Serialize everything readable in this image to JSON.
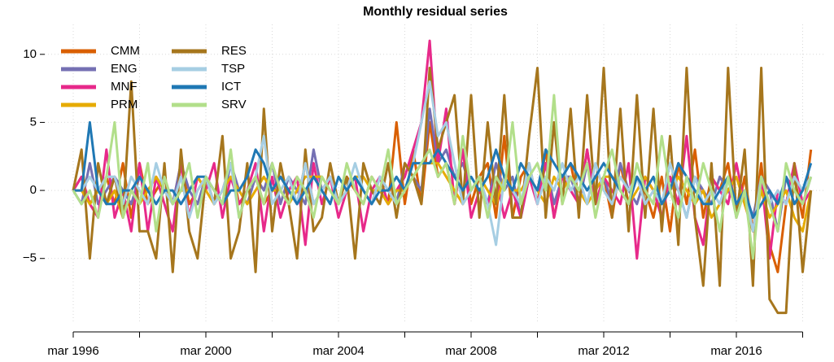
{
  "chart_data": {
    "type": "line",
    "title": "Monthly residual series",
    "x": [
      "1996-03",
      "1996-06",
      "1996-09",
      "1996-12",
      "1997-03",
      "1997-06",
      "1997-09",
      "1997-12",
      "1998-03",
      "1998-06",
      "1998-09",
      "1998-12",
      "1999-03",
      "1999-06",
      "1999-09",
      "1999-12",
      "2000-03",
      "2000-06",
      "2000-09",
      "2000-12",
      "2001-03",
      "2001-06",
      "2001-09",
      "2001-12",
      "2002-03",
      "2002-06",
      "2002-09",
      "2002-12",
      "2003-03",
      "2003-06",
      "2003-09",
      "2003-12",
      "2004-03",
      "2004-06",
      "2004-09",
      "2004-12",
      "2005-03",
      "2005-06",
      "2005-09",
      "2005-12",
      "2006-03",
      "2006-06",
      "2006-09",
      "2006-12",
      "2007-03",
      "2007-06",
      "2007-09",
      "2007-12",
      "2008-03",
      "2008-06",
      "2008-09",
      "2008-12",
      "2009-03",
      "2009-06",
      "2009-09",
      "2009-12",
      "2010-03",
      "2010-06",
      "2010-09",
      "2010-12",
      "2011-03",
      "2011-06",
      "2011-09",
      "2011-12",
      "2012-03",
      "2012-06",
      "2012-09",
      "2012-12",
      "2013-03",
      "2013-06",
      "2013-09",
      "2013-12",
      "2014-03",
      "2014-06",
      "2014-09",
      "2014-12",
      "2015-03",
      "2015-06",
      "2015-09",
      "2015-12",
      "2016-03",
      "2016-06",
      "2016-09",
      "2016-12",
      "2017-03",
      "2017-06",
      "2017-09",
      "2017-12",
      "2018-03",
      "2018-06"
    ],
    "series": [
      {
        "name": "CMM",
        "color": "#d95f02",
        "values": [
          0,
          1,
          -1,
          0,
          1,
          -1,
          2,
          -2,
          2,
          -1,
          0,
          1,
          -1,
          2,
          -1,
          0,
          1,
          -1,
          0,
          2,
          -1,
          0,
          1,
          -1,
          0,
          1,
          0,
          -1,
          2,
          -1,
          0,
          1,
          -1,
          1,
          0,
          -1,
          1,
          0,
          -1,
          5,
          -1,
          3,
          -1,
          5,
          1,
          2,
          -1,
          3,
          -1,
          1,
          2,
          -2,
          4,
          -2,
          1,
          2,
          -1,
          3,
          -2,
          1,
          2,
          -1,
          3,
          -1,
          1,
          -2,
          2,
          -1,
          1,
          0,
          -2,
          1,
          -3,
          2,
          -1,
          3,
          -2,
          1,
          0,
          2,
          -2,
          1,
          -3,
          2,
          -4,
          -6,
          -1,
          1,
          -2,
          3
        ]
      },
      {
        "name": "ENG",
        "color": "#7570b3",
        "values": [
          0,
          -1,
          2,
          -1,
          0,
          1,
          0,
          -1,
          1,
          0,
          1,
          0,
          -1,
          2,
          0,
          -1,
          1,
          0,
          -1,
          2,
          0,
          -1,
          1,
          0,
          2,
          -1,
          1,
          0,
          -1,
          3,
          0,
          1,
          -1,
          0,
          1,
          0,
          -1,
          1,
          0,
          -1,
          2,
          1,
          0,
          6,
          2,
          3,
          1,
          2,
          0,
          1,
          -1,
          2,
          0,
          1,
          -2,
          1,
          0,
          2,
          -1,
          1,
          1,
          -1,
          2,
          0,
          1,
          -1,
          2,
          0,
          -1,
          1,
          0,
          -1,
          1,
          0,
          -2,
          1,
          0,
          -1,
          1,
          0,
          -1,
          0,
          -2,
          1,
          0,
          -3,
          1,
          0,
          -1,
          1
        ]
      },
      {
        "name": "MNF",
        "color": "#e7298a",
        "values": [
          0,
          1,
          -1,
          -2,
          3,
          -2,
          0,
          -3,
          2,
          -3,
          1,
          -1,
          -3,
          2,
          -2,
          1,
          0,
          2,
          -2,
          1,
          -1,
          0,
          2,
          -3,
          1,
          -2,
          0,
          1,
          -4,
          2,
          -1,
          1,
          -2,
          0,
          1,
          -3,
          0,
          1,
          -1,
          0,
          1,
          3,
          5,
          11,
          2,
          6,
          -1,
          3,
          -2,
          0,
          -1,
          1,
          -2,
          0,
          -2,
          1,
          -1,
          2,
          -2,
          1,
          0,
          -1,
          3,
          -1,
          1,
          0,
          -1,
          2,
          -5,
          1,
          0,
          -2,
          1,
          -1,
          4,
          -2,
          -4,
          1,
          0,
          -1,
          2,
          -1,
          -3,
          1,
          -5,
          0,
          -1,
          2,
          -1,
          0
        ]
      },
      {
        "name": "PRM",
        "color": "#e6ab02",
        "values": [
          0,
          0,
          -1,
          0,
          -1,
          0,
          -2,
          0,
          -1,
          0,
          1,
          0,
          -1,
          0,
          0,
          1,
          0,
          -1,
          0,
          1,
          0,
          -1,
          0,
          1,
          0,
          0,
          -1,
          0,
          1,
          1,
          1,
          0,
          -1,
          0,
          1,
          1,
          0,
          0,
          -1,
          0,
          0,
          1,
          2,
          2,
          2,
          1,
          0,
          -1,
          0,
          1,
          0,
          -1,
          1,
          0,
          0,
          1,
          0,
          -1,
          1,
          0,
          1,
          0,
          -1,
          0,
          1,
          1,
          0,
          -1,
          0,
          1,
          0,
          -1,
          0,
          1,
          0,
          -1,
          0,
          -2,
          -1,
          0,
          1,
          -1,
          -3,
          0,
          -2,
          -1,
          0,
          -2,
          -3,
          0
        ]
      },
      {
        "name": "RES",
        "color": "#a6761d",
        "values": [
          0,
          3,
          -5,
          2,
          -1,
          1,
          -2,
          8,
          -3,
          -3,
          -5,
          2,
          -6,
          3,
          -3,
          -5,
          1,
          -1,
          4,
          -5,
          -3,
          2,
          -6,
          6,
          -3,
          2,
          -1,
          -5,
          3,
          -3,
          -2,
          2,
          -1,
          1,
          -5,
          2,
          0,
          -1,
          2,
          -2,
          2,
          1,
          -1,
          9,
          3,
          5,
          7,
          -1,
          7,
          -2,
          5,
          -1,
          7,
          -2,
          -2,
          4,
          9,
          -2,
          5,
          -1,
          6,
          -2,
          7,
          -1,
          9,
          -2,
          6,
          -3,
          7,
          -2,
          6,
          -3,
          4,
          -4,
          9,
          -2,
          -7,
          2,
          -7,
          9,
          -2,
          3,
          -7,
          9,
          -8,
          -9,
          -9,
          2,
          -6,
          0
        ]
      },
      {
        "name": "TSP",
        "color": "#a6cee3",
        "values": [
          0,
          0,
          1,
          0,
          1,
          1,
          -1,
          1,
          0,
          -1,
          2,
          0,
          -1,
          1,
          -2,
          0,
          1,
          -1,
          0,
          2,
          -2,
          0,
          1,
          4,
          -1,
          0,
          1,
          -1,
          2,
          -1,
          0,
          1,
          -1,
          0,
          2,
          0,
          -1,
          1,
          0,
          -1,
          0,
          2,
          5,
          8,
          4,
          5,
          2,
          -1,
          0,
          1,
          -1,
          -4,
          1,
          0,
          -1,
          2,
          -1,
          1,
          0,
          2,
          0,
          1,
          -1,
          2,
          0,
          -1,
          1,
          0,
          1,
          -1,
          0,
          -1,
          2,
          0,
          -2,
          1,
          -1,
          0,
          -1,
          1,
          -2,
          0,
          -3,
          1,
          -1,
          0,
          -1,
          1,
          0,
          1
        ]
      },
      {
        "name": "ICT",
        "color": "#1f78b4",
        "values": [
          0,
          0,
          5,
          0,
          -1,
          -1,
          0,
          0,
          1,
          0,
          -1,
          0,
          0,
          -1,
          0,
          1,
          1,
          0,
          -1,
          0,
          0,
          1,
          3,
          2,
          0,
          1,
          0,
          -1,
          0,
          1,
          0,
          -1,
          1,
          0,
          1,
          0,
          -1,
          0,
          0,
          1,
          0,
          2,
          2,
          2,
          3,
          2,
          1,
          0,
          1,
          0,
          1,
          3,
          1,
          0,
          2,
          1,
          0,
          3,
          2,
          1,
          2,
          1,
          0,
          1,
          2,
          1,
          0,
          -1,
          1,
          0,
          1,
          -1,
          0,
          2,
          1,
          0,
          -1,
          -1,
          0,
          1,
          -1,
          0,
          -2,
          -1,
          0,
          -1,
          1,
          -1,
          0,
          2
        ]
      },
      {
        "name": "SRV",
        "color": "#b2df8a",
        "values": [
          0,
          -1,
          0,
          -2,
          1,
          5,
          -2,
          0,
          -1,
          2,
          -3,
          1,
          -1,
          0,
          2,
          -2,
          1,
          0,
          -1,
          3,
          -2,
          0,
          1,
          -1,
          2,
          0,
          -1,
          1,
          0,
          -2,
          1,
          0,
          -1,
          2,
          0,
          -1,
          1,
          0,
          3,
          -1,
          0,
          1,
          2,
          3,
          1,
          2,
          -1,
          4,
          0,
          1,
          -2,
          1,
          0,
          5,
          -1,
          1,
          2,
          0,
          7,
          -1,
          1,
          0,
          2,
          -2,
          1,
          3,
          0,
          -1,
          2,
          0,
          -1,
          4,
          0,
          -2,
          1,
          -1,
          2,
          0,
          -3,
          1,
          -2,
          0,
          -5,
          1,
          -1,
          -3,
          2,
          0,
          -1,
          1
        ]
      }
    ],
    "ylim": [
      -9.8,
      12.2
    ],
    "yticks": [
      {
        "value": -5,
        "label": "−5"
      },
      0,
      5,
      10
    ],
    "xticks": [
      {
        "value": "1996-03",
        "label": "mar 1996"
      },
      {
        "value": "2000-03",
        "label": "mar 2000"
      },
      {
        "value": "2004-03",
        "label": "mar 2004"
      },
      {
        "value": "2008-03",
        "label": "mar 2008"
      },
      {
        "value": "2012-03",
        "label": "mar 2012"
      },
      {
        "value": "2016-03",
        "label": "mar 2016"
      }
    ],
    "xminor_ticks": [
      "1998-03",
      "2002-03",
      "2006-03",
      "2010-03",
      "2014-03",
      "2018-03"
    ],
    "grid": true,
    "legend": "top-left"
  }
}
